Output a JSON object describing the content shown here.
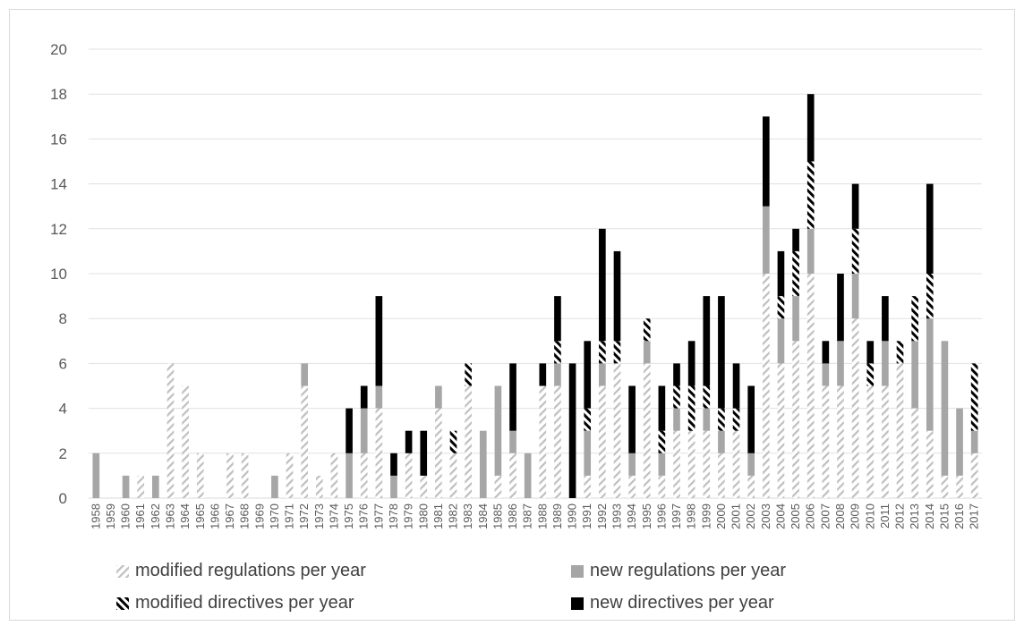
{
  "chart_data": {
    "type": "bar",
    "stacked": true,
    "title": "",
    "xlabel": "",
    "ylabel": "",
    "ylim": [
      0,
      20
    ],
    "yticks": [
      0,
      2,
      4,
      6,
      8,
      10,
      12,
      14,
      16,
      18,
      20
    ],
    "grid": true,
    "legend_position": "bottom",
    "categories": [
      "1958",
      "1959",
      "1960",
      "1961",
      "1962",
      "1963",
      "1964",
      "1965",
      "1966",
      "1967",
      "1968",
      "1969",
      "1970",
      "1971",
      "1972",
      "1973",
      "1974",
      "1975",
      "1976",
      "1977",
      "1978",
      "1979",
      "1980",
      "1981",
      "1982",
      "1983",
      "1984",
      "1985",
      "1986",
      "1987",
      "1988",
      "1989",
      "1990",
      "1991",
      "1992",
      "1993",
      "1994",
      "1995",
      "1996",
      "1997",
      "1998",
      "1999",
      "2000",
      "2001",
      "2002",
      "2003",
      "2004",
      "2005",
      "2006",
      "2007",
      "2008",
      "2009",
      "2010",
      "2011",
      "2012",
      "2013",
      "2014",
      "2015",
      "2016",
      "2017"
    ],
    "series": [
      {
        "name": "modified regulations per year",
        "pattern": "hatch-light",
        "color": "#bfbfbf",
        "values": [
          0,
          0,
          0,
          1,
          0,
          6,
          5,
          2,
          0,
          2,
          2,
          0,
          0,
          2,
          5,
          1,
          2,
          0,
          2,
          4,
          0,
          2,
          1,
          4,
          2,
          5,
          0,
          1,
          2,
          0,
          5,
          5,
          0,
          1,
          5,
          6,
          1,
          6,
          1,
          3,
          3,
          3,
          2,
          3,
          1,
          10,
          6,
          7,
          10,
          5,
          5,
          8,
          5,
          5,
          6,
          4,
          3,
          1,
          1,
          2
        ]
      },
      {
        "name": "new regulations per year",
        "pattern": "solid",
        "color": "#a6a6a6",
        "values": [
          2,
          0,
          1,
          0,
          1,
          0,
          0,
          0,
          0,
          0,
          0,
          0,
          1,
          0,
          1,
          0,
          0,
          2,
          2,
          1,
          1,
          0,
          0,
          1,
          0,
          0,
          3,
          4,
          1,
          2,
          0,
          1,
          0,
          2,
          1,
          0,
          1,
          1,
          1,
          1,
          0,
          1,
          1,
          0,
          1,
          3,
          2,
          2,
          2,
          1,
          2,
          2,
          0,
          2,
          0,
          3,
          5,
          6,
          3,
          1
        ]
      },
      {
        "name": "modified directives per year",
        "pattern": "hatch-dark",
        "color": "#000000",
        "values": [
          0,
          0,
          0,
          0,
          0,
          0,
          0,
          0,
          0,
          0,
          0,
          0,
          0,
          0,
          0,
          0,
          0,
          0,
          0,
          0,
          0,
          0,
          0,
          0,
          1,
          1,
          0,
          0,
          0,
          0,
          0,
          1,
          0,
          1,
          1,
          1,
          0,
          1,
          1,
          1,
          2,
          1,
          1,
          1,
          0,
          0,
          1,
          2,
          3,
          0,
          0,
          2,
          1,
          0,
          1,
          2,
          2,
          0,
          0,
          3
        ]
      },
      {
        "name": "new directives per year",
        "pattern": "solid",
        "color": "#000000",
        "values": [
          0,
          0,
          0,
          0,
          0,
          0,
          0,
          0,
          0,
          0,
          0,
          0,
          0,
          0,
          0,
          0,
          0,
          2,
          1,
          4,
          1,
          1,
          2,
          0,
          0,
          0,
          0,
          0,
          3,
          0,
          1,
          2,
          6,
          3,
          5,
          4,
          3,
          0,
          2,
          1,
          2,
          4,
          5,
          2,
          3,
          4,
          2,
          1,
          3,
          1,
          3,
          2,
          1,
          2,
          0,
          0,
          4,
          0,
          0,
          0
        ]
      }
    ]
  }
}
